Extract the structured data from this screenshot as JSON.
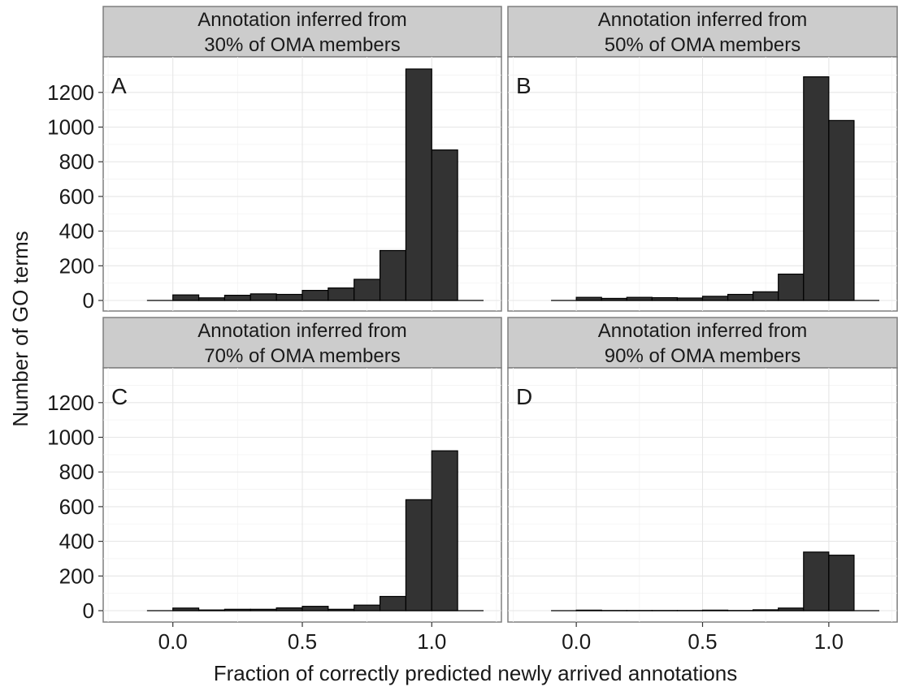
{
  "chart_data": {
    "type": "bar",
    "xlabel": "Fraction of correctly predicted newly arrived annotations",
    "ylabel": "Number of GO terms",
    "xlim": [
      -0.2,
      1.2
    ],
    "ylim": [
      0,
      1330
    ],
    "x_ticks": [
      "0.0",
      "0.5",
      "1.0"
    ],
    "y_ticks": [
      "0",
      "200",
      "400",
      "600",
      "800",
      "1000",
      "1200"
    ],
    "bin_width": 0.1,
    "bins": [
      -0.1,
      0.0,
      0.1,
      0.2,
      0.3,
      0.4,
      0.5,
      0.6,
      0.7,
      0.8,
      0.9,
      1.0,
      1.1
    ],
    "grid": true,
    "panels": [
      {
        "tag": "A",
        "strip_line1": "Annotation inferred from",
        "strip_line2": "30% of OMA members",
        "values": [
          0,
          32,
          15,
          30,
          38,
          35,
          58,
          72,
          122,
          288,
          1335,
          868,
          0
        ]
      },
      {
        "tag": "B",
        "strip_line1": "Annotation inferred from",
        "strip_line2": "50% of OMA members",
        "values": [
          0,
          18,
          12,
          18,
          16,
          14,
          24,
          35,
          50,
          152,
          1290,
          1038,
          0
        ]
      },
      {
        "tag": "C",
        "strip_line1": "Annotation inferred from",
        "strip_line2": "70% of OMA members",
        "values": [
          0,
          15,
          4,
          8,
          8,
          16,
          25,
          8,
          32,
          82,
          640,
          922,
          0
        ]
      },
      {
        "tag": "D",
        "strip_line1": "Annotation inferred from",
        "strip_line2": "90% of OMA members",
        "values": [
          0,
          3,
          1,
          1,
          1,
          1,
          3,
          1,
          5,
          15,
          338,
          320,
          0
        ]
      }
    ]
  }
}
